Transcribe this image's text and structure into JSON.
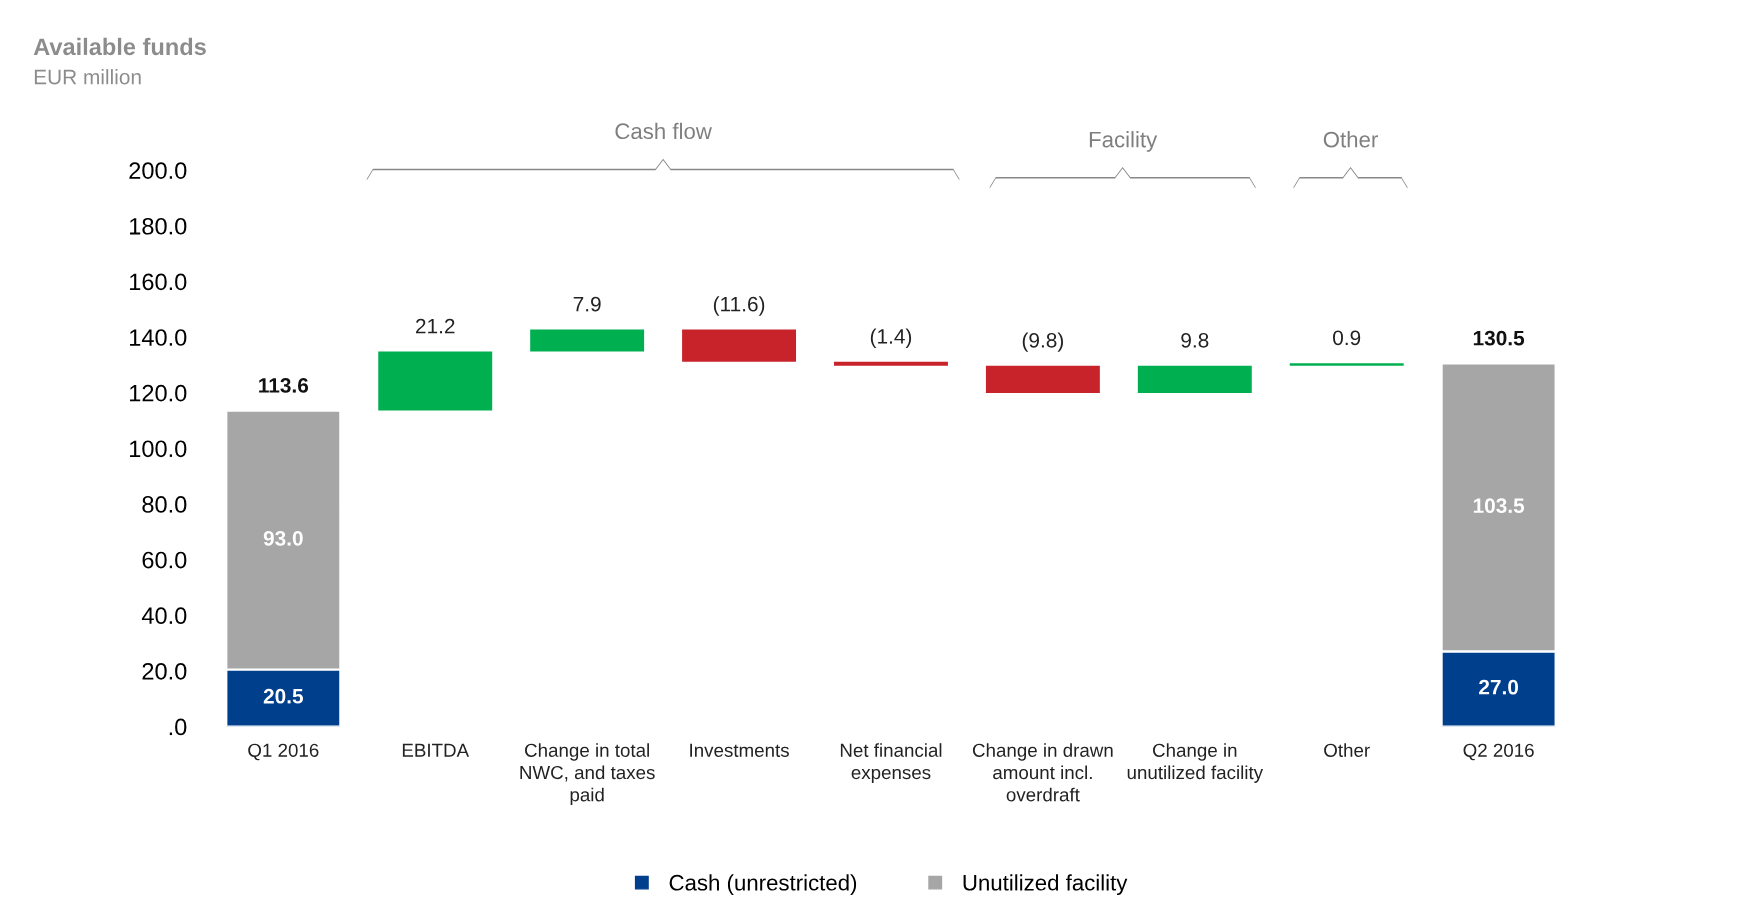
{
  "chart_data": {
    "type": "bar",
    "title": "Available funds",
    "subtitle": "EUR million",
    "categories": [
      "Q1 2016",
      "EBITDA",
      "Change in total\nNWC, and taxes\npaid",
      "Investments",
      "Net financial\nexpenses",
      "Change in drawn\namount incl.\noverdraft",
      "Change in\nunutilized facility",
      "Other",
      "Q2 2016"
    ],
    "stacked": true,
    "series": [
      {
        "name": "Cash (unrestricted)",
        "color": "#003f8c",
        "values": [
          20.5,
          null,
          null,
          null,
          null,
          null,
          null,
          null,
          27.0
        ],
        "value_labels": [
          "20.5",
          null,
          null,
          null,
          null,
          null,
          null,
          null,
          "27.0"
        ]
      },
      {
        "name": "Unutilized facility",
        "color": "#a6a6a6",
        "values": [
          93.0,
          null,
          null,
          null,
          null,
          null,
          null,
          null,
          103.5
        ],
        "value_labels": [
          "93.0",
          null,
          null,
          null,
          null,
          null,
          null,
          null,
          "103.5"
        ]
      },
      {
        "color": "#00b050",
        "values": [
          null,
          21.2,
          7.9,
          null,
          null,
          null,
          9.8,
          0.9,
          null
        ],
        "base": [
          null,
          113.6,
          134.8,
          null,
          null,
          null,
          119.9,
          129.7,
          null
        ],
        "value_labels": [
          null,
          "21.2",
          "7.9",
          null,
          null,
          null,
          "9.8",
          "0.9",
          null
        ]
      },
      {
        "color": "#c8222b",
        "values": [
          null,
          null,
          null,
          -11.6,
          -1.4,
          -9.8,
          null,
          null,
          null
        ],
        "base": [
          null,
          null,
          null,
          142.7,
          131.1,
          129.7,
          null,
          null,
          null
        ],
        "value_labels": [
          null,
          null,
          null,
          "(11.6)",
          "(1.4)",
          "(9.8)",
          null,
          null,
          null
        ]
      }
    ],
    "totals": [
      "113.6",
      null,
      null,
      null,
      null,
      null,
      null,
      null,
      "130.5"
    ],
    "annotations": [
      "Cash flow",
      "Facility",
      "Other"
    ],
    "ylim": [
      0,
      200
    ],
    "yticks": [
      {
        "value": 0,
        "label": ".0"
      },
      {
        "value": 20,
        "label": "20.0"
      },
      {
        "value": 40,
        "label": "40.0"
      },
      {
        "value": 60,
        "label": "60.0"
      },
      {
        "value": 80,
        "label": "80.0"
      },
      {
        "value": 100,
        "label": "100.0"
      },
      {
        "value": 120,
        "label": "120.0"
      },
      {
        "value": 140,
        "label": "140.0"
      },
      {
        "value": 160,
        "label": "160.0"
      },
      {
        "value": 180,
        "label": "180.0"
      },
      {
        "value": 200,
        "label": "200.0"
      }
    ],
    "legend": "bottom",
    "grid": false
  }
}
